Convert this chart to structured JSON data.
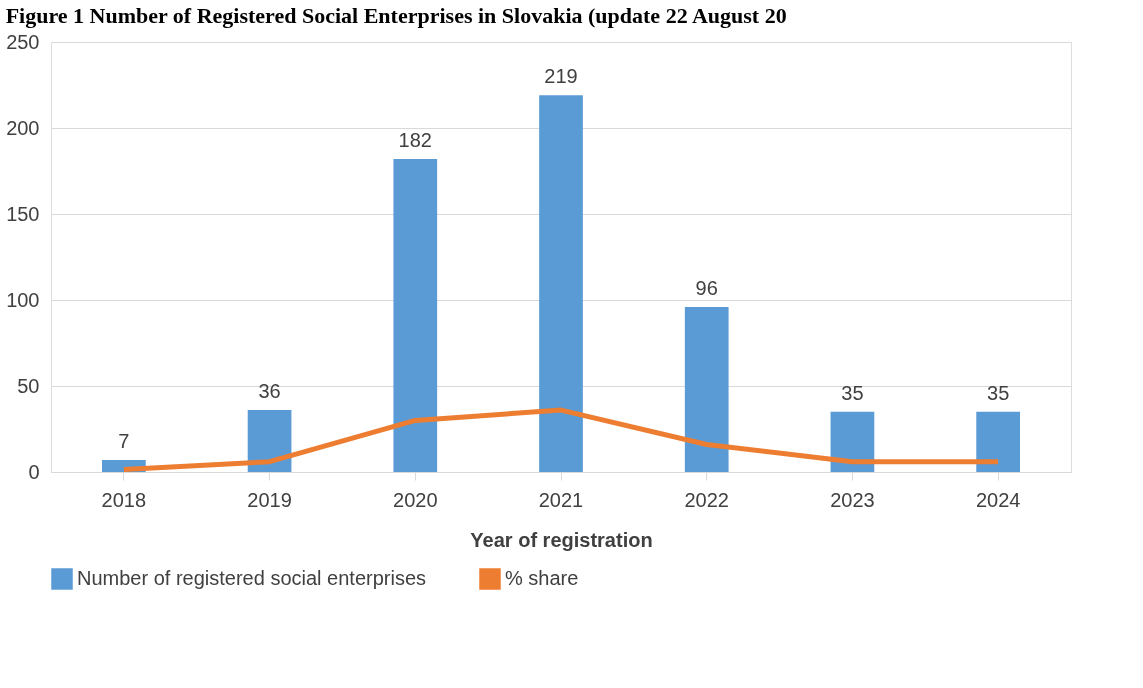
{
  "chart_data": {
    "type": "bar",
    "title": "Figure 1 Number of Registered Social Enterprises in Slovakia (update 22 August 20",
    "xlabel": "Year of registration",
    "categories": [
      "2018",
      "2019",
      "2020",
      "2021",
      "2022",
      "2023",
      "2024"
    ],
    "series": [
      {
        "name": "Number of registered social enterprises",
        "color": "#5b9bd5",
        "values": [
          7,
          36,
          182,
          219,
          96,
          35,
          35
        ],
        "value_labels": [
          "7",
          "36",
          "182",
          "219",
          "96",
          "35",
          "35"
        ]
      },
      {
        "name": "% share",
        "type": "line",
        "color": "#ed7d31",
        "values": [
          1.5,
          6,
          30,
          36,
          16,
          6,
          6
        ]
      }
    ],
    "ylim": [
      0,
      250
    ],
    "yticks": [
      0,
      50,
      100,
      150,
      200,
      250
    ],
    "grid": "y",
    "legend": "bottom",
    "marker": "none",
    "line_style": "solid"
  }
}
